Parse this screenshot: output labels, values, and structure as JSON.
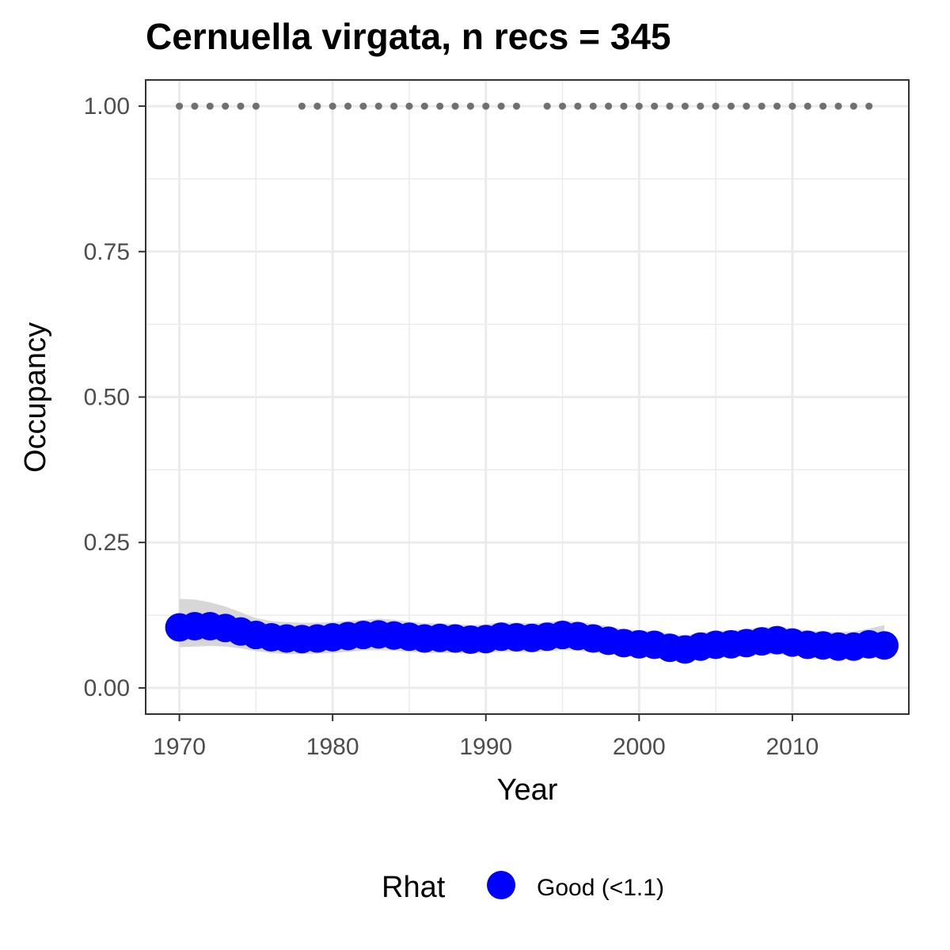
{
  "chart_data": {
    "type": "scatter",
    "title": "Cernuella virgata, n recs = 345",
    "xlabel": "Year",
    "ylabel": "Occupancy",
    "xlim": [
      1967.8,
      2017.6
    ],
    "ylim": [
      -0.045,
      1.045
    ],
    "x_ticks": [
      1970,
      1980,
      1990,
      2000,
      2010
    ],
    "x_tick_labels": [
      "1970",
      "1980",
      "1990",
      "2000",
      "2010"
    ],
    "y_ticks": [
      0,
      0.25,
      0.5,
      0.75,
      1.0
    ],
    "y_tick_labels": [
      "0.00",
      "0.25",
      "0.50",
      "0.75",
      "1.00"
    ],
    "grid": true,
    "legend": {
      "title": "Rhat",
      "position": "bottom",
      "entries": [
        {
          "label": "Good (<1.1)",
          "color": "#0000ff"
        }
      ]
    },
    "colors": {
      "estimate": "#0000ff",
      "ribbon": "#d3d3d3",
      "records": "#707070",
      "panel_border": "#333333",
      "grid": "#ebebeb"
    },
    "series": [
      {
        "name": "Good (<1.1)",
        "x": [
          1970,
          1971,
          1972,
          1973,
          1974,
          1975,
          1976,
          1977,
          1978,
          1979,
          1980,
          1981,
          1982,
          1983,
          1984,
          1985,
          1986,
          1987,
          1988,
          1989,
          1990,
          1991,
          1992,
          1993,
          1994,
          1995,
          1996,
          1997,
          1998,
          1999,
          2000,
          2001,
          2002,
          2003,
          2004,
          2005,
          2006,
          2007,
          2008,
          2009,
          2010,
          2011,
          2012,
          2013,
          2014,
          2015,
          2016
        ],
        "y": [
          0.104,
          0.106,
          0.106,
          0.103,
          0.097,
          0.091,
          0.087,
          0.085,
          0.084,
          0.085,
          0.087,
          0.089,
          0.091,
          0.092,
          0.09,
          0.088,
          0.085,
          0.086,
          0.085,
          0.083,
          0.084,
          0.088,
          0.087,
          0.086,
          0.088,
          0.091,
          0.089,
          0.085,
          0.081,
          0.077,
          0.075,
          0.074,
          0.069,
          0.066,
          0.071,
          0.074,
          0.075,
          0.077,
          0.08,
          0.082,
          0.078,
          0.074,
          0.073,
          0.071,
          0.071,
          0.075,
          0.073
        ],
        "lower": [
          0.07,
          0.071,
          0.072,
          0.071,
          0.068,
          0.063,
          0.06,
          0.058,
          0.058,
          0.059,
          0.06,
          0.062,
          0.064,
          0.065,
          0.064,
          0.062,
          0.06,
          0.06,
          0.06,
          0.059,
          0.06,
          0.062,
          0.062,
          0.061,
          0.063,
          0.065,
          0.064,
          0.061,
          0.058,
          0.055,
          0.053,
          0.052,
          0.049,
          0.047,
          0.05,
          0.052,
          0.053,
          0.055,
          0.057,
          0.058,
          0.056,
          0.053,
          0.052,
          0.05,
          0.05,
          0.052,
          0.05
        ],
        "upper": [
          0.153,
          0.152,
          0.147,
          0.14,
          0.13,
          0.12,
          0.115,
          0.113,
          0.112,
          0.112,
          0.113,
          0.115,
          0.117,
          0.119,
          0.117,
          0.114,
          0.111,
          0.111,
          0.11,
          0.108,
          0.109,
          0.113,
          0.112,
          0.111,
          0.113,
          0.116,
          0.114,
          0.11,
          0.106,
          0.101,
          0.099,
          0.098,
          0.093,
          0.09,
          0.095,
          0.098,
          0.099,
          0.101,
          0.104,
          0.106,
          0.102,
          0.098,
          0.097,
          0.096,
          0.097,
          0.102,
          0.108
        ]
      },
      {
        "name": "",
        "x": [
          1970,
          1971,
          1972,
          1973,
          1974,
          1975,
          1978,
          1979,
          1980,
          1981,
          1982,
          1983,
          1984,
          1985,
          1986,
          1987,
          1988,
          1989,
          1990,
          1991,
          1992,
          1994,
          1995,
          1996,
          1997,
          1998,
          1999,
          2000,
          2001,
          2002,
          2003,
          2004,
          2005,
          2006,
          2007,
          2008,
          2009,
          2010,
          2011,
          2012,
          2013,
          2014,
          2015
        ],
        "y": [
          1,
          1,
          1,
          1,
          1,
          1,
          1,
          1,
          1,
          1,
          1,
          1,
          1,
          1,
          1,
          1,
          1,
          1,
          1,
          1,
          1,
          1,
          1,
          1,
          1,
          1,
          1,
          1,
          1,
          1,
          1,
          1,
          1,
          1,
          1,
          1,
          1,
          1,
          1,
          1,
          1,
          1,
          1
        ]
      }
    ]
  }
}
